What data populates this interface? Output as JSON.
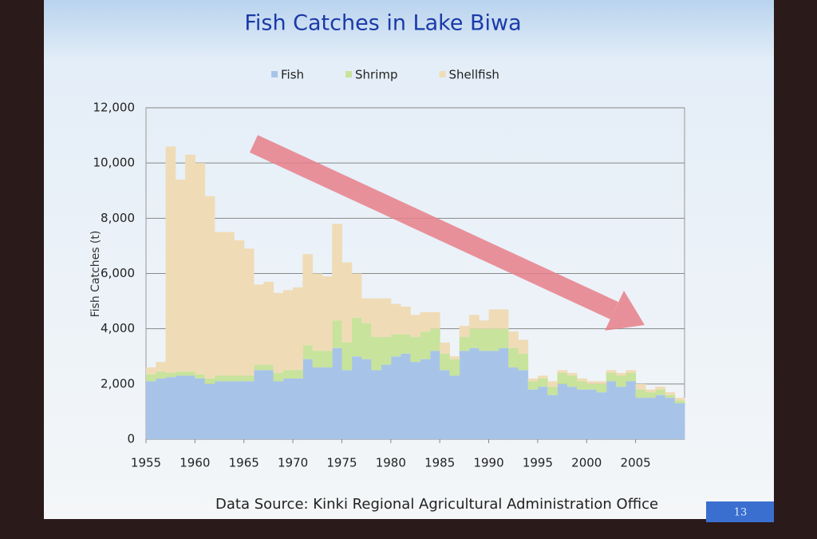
{
  "chart_data": {
    "type": "bar",
    "stacked": true,
    "title": "Fish Catches in Lake Biwa",
    "y_label": "Fish Catches (t)",
    "x": [
      1955,
      1956,
      1957,
      1958,
      1959,
      1960,
      1961,
      1962,
      1963,
      1964,
      1965,
      1966,
      1967,
      1968,
      1969,
      1970,
      1971,
      1972,
      1973,
      1974,
      1975,
      1976,
      1977,
      1978,
      1979,
      1980,
      1981,
      1982,
      1983,
      1984,
      1985,
      1986,
      1987,
      1988,
      1989,
      1990,
      1991,
      1992,
      1993,
      1994,
      1995,
      1996,
      1997,
      1998,
      1999,
      2000,
      2001,
      2002,
      2003,
      2004,
      2005,
      2006,
      2007,
      2008,
      2009
    ],
    "series": [
      {
        "name": "Fish",
        "color": "#a7c4e8",
        "values": [
          2100,
          2200,
          2250,
          2300,
          2300,
          2200,
          2000,
          2100,
          2100,
          2100,
          2100,
          2500,
          2500,
          2100,
          2200,
          2200,
          2900,
          2600,
          2600,
          3300,
          2500,
          3000,
          2900,
          2500,
          2700,
          3000,
          3100,
          2800,
          2900,
          3200,
          2500,
          2300,
          3200,
          3300,
          3200,
          3200,
          3300,
          2600,
          2500,
          1800,
          1900,
          1600,
          2000,
          1900,
          1800,
          1800,
          1700,
          2100,
          1900,
          2100,
          1500,
          1500,
          1600,
          1500,
          1300
        ]
      },
      {
        "name": "Shrimp",
        "color": "#c8e39c",
        "values": [
          250,
          250,
          150,
          150,
          150,
          150,
          200,
          200,
          200,
          200,
          200,
          200,
          200,
          300,
          300,
          300,
          500,
          600,
          600,
          1000,
          1000,
          1400,
          1300,
          1200,
          1000,
          800,
          700,
          900,
          1000,
          800,
          600,
          600,
          500,
          700,
          800,
          800,
          700,
          700,
          600,
          300,
          300,
          300,
          400,
          400,
          300,
          200,
          300,
          300,
          400,
          300,
          300,
          200,
          200,
          100,
          100
        ]
      },
      {
        "name": "Shellfish",
        "color": "#efdcb6",
        "values": [
          250,
          350,
          8200,
          6950,
          7850,
          7650,
          6600,
          5200,
          5200,
          4900,
          4600,
          2900,
          3000,
          2900,
          2900,
          3000,
          3300,
          2800,
          2700,
          3500,
          2900,
          1600,
          900,
          1400,
          1400,
          1100,
          1000,
          800,
          700,
          600,
          400,
          100,
          400,
          500,
          300,
          700,
          700,
          600,
          500,
          100,
          100,
          200,
          100,
          100,
          100,
          100,
          100,
          100,
          100,
          100,
          200,
          100,
          100,
          100,
          100
        ]
      }
    ],
    "xlim": [
      1955,
      2010
    ],
    "xticks": [
      1955,
      1960,
      1965,
      1970,
      1975,
      1980,
      1985,
      1990,
      1995,
      2000,
      2005
    ],
    "ylim": [
      0,
      12000
    ],
    "yticks": [
      0,
      {
        "value": 2000,
        "label": "2,000"
      },
      {
        "value": 4000,
        "label": "4,000"
      },
      {
        "value": 6000,
        "label": "6,000"
      },
      {
        "value": 8000,
        "label": "8,000"
      },
      {
        "value": 10000,
        "label": "10,000"
      },
      {
        "value": 12000,
        "label": "12,000"
      }
    ],
    "grid": true
  },
  "slide": {
    "source": "Data Source:  Kinki Regional Agricultural Administration Office",
    "number": "13"
  }
}
